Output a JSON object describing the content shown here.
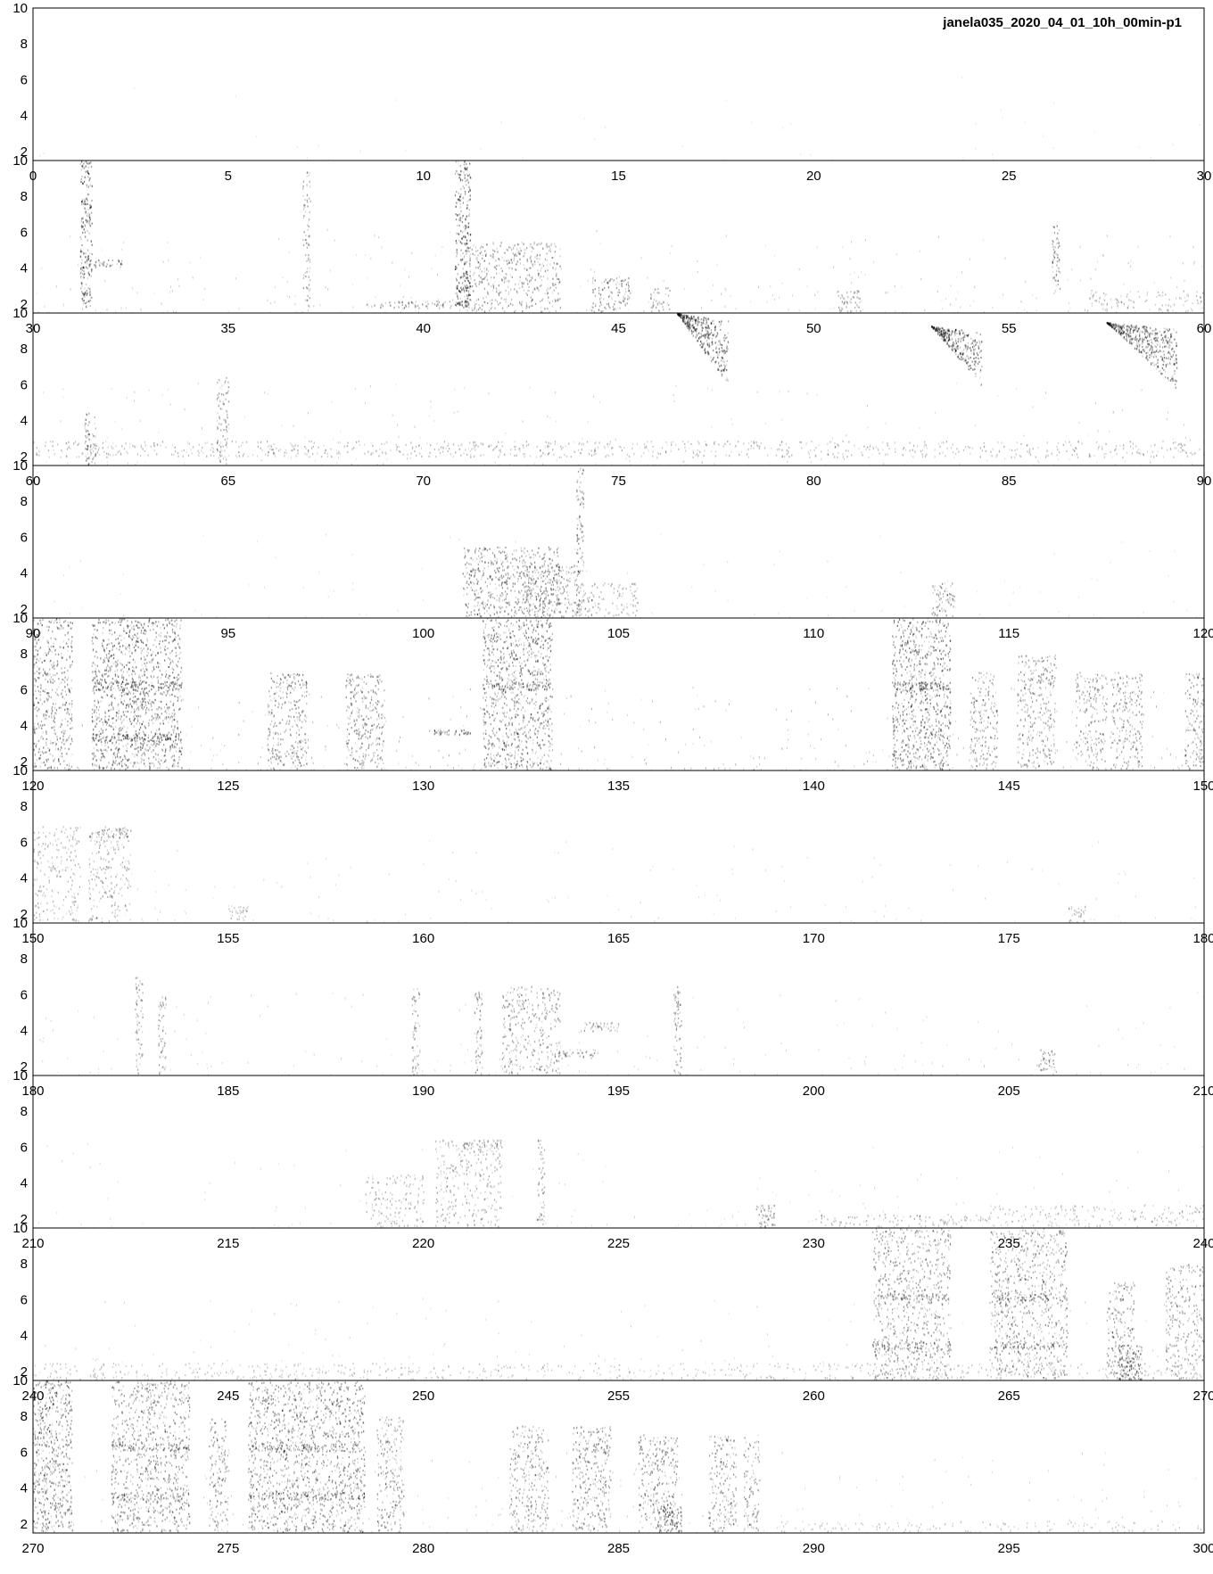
{
  "title": "janela035_2020_04_01_10h_00min-p1",
  "chart_data": {
    "type": "heatmap",
    "title": "janela035_2020_04_01_10h_00min-p1",
    "xlabel": "",
    "ylabel": "",
    "grid": false,
    "legend": "none",
    "ylim": [
      1.5,
      10
    ],
    "y_ticks": [
      2,
      4,
      6,
      8,
      10
    ],
    "x_tick_step": 5,
    "colors": {
      "ink": "#000000",
      "background": "#ffffff"
    },
    "rows": [
      {
        "xlim": [
          0,
          30
        ],
        "noise": 0.05,
        "events": []
      },
      {
        "xlim": [
          30,
          60
        ],
        "noise": 0.35,
        "events": [
          {
            "x0": 31.2,
            "x1": 31.5,
            "f0": 1.8,
            "f1": 10,
            "intensity": 0.9
          },
          {
            "x0": 31.3,
            "x1": 32.3,
            "f0": 4.1,
            "f1": 4.5,
            "intensity": 0.7
          },
          {
            "x0": 36.9,
            "x1": 37.1,
            "f0": 1.8,
            "f1": 9.5,
            "intensity": 0.5
          },
          {
            "x0": 40.8,
            "x1": 41.2,
            "f0": 1.8,
            "f1": 10,
            "intensity": 0.9
          },
          {
            "x0": 38.5,
            "x1": 41.0,
            "f0": 1.8,
            "f1": 2.2,
            "intensity": 0.6
          },
          {
            "x0": 41.0,
            "x1": 43.5,
            "f0": 1.6,
            "f1": 5.5,
            "intensity": 0.55
          },
          {
            "x0": 44.3,
            "x1": 45.3,
            "f0": 1.6,
            "f1": 3.5,
            "intensity": 0.6
          },
          {
            "x0": 45.8,
            "x1": 46.3,
            "f0": 1.6,
            "f1": 3.0,
            "intensity": 0.4
          },
          {
            "x0": 50.6,
            "x1": 51.2,
            "f0": 1.6,
            "f1": 2.8,
            "intensity": 0.5
          },
          {
            "x0": 56.1,
            "x1": 56.3,
            "f0": 2.5,
            "f1": 6.5,
            "intensity": 0.6
          },
          {
            "x0": 57.0,
            "x1": 60.0,
            "f0": 1.6,
            "f1": 2.8,
            "intensity": 0.3
          }
        ]
      },
      {
        "xlim": [
          60,
          90
        ],
        "noise": 0.3,
        "events": [
          {
            "x0": 60,
            "x1": 90,
            "f0": 2.0,
            "f1": 2.9,
            "intensity": 0.35
          },
          {
            "x0": 61.3,
            "x1": 61.6,
            "f0": 1.6,
            "f1": 4.5,
            "intensity": 0.6
          },
          {
            "x0": 64.7,
            "x1": 65.0,
            "f0": 1.6,
            "f1": 6.5,
            "intensity": 0.5
          },
          {
            "x0": 76.5,
            "x1": 77.8,
            "f0": 6.0,
            "f1": 10,
            "intensity": 0.85,
            "sweep": true
          },
          {
            "x0": 83.0,
            "x1": 84.3,
            "f0": 6.0,
            "f1": 9.3,
            "intensity": 0.85,
            "sweep": true
          },
          {
            "x0": 87.5,
            "x1": 89.3,
            "f0": 5.8,
            "f1": 9.5,
            "intensity": 0.8,
            "sweep": true
          }
        ]
      },
      {
        "xlim": [
          90,
          120
        ],
        "noise": 0.12,
        "events": [
          {
            "x0": 101.0,
            "x1": 103.5,
            "f0": 1.6,
            "f1": 5.5,
            "intensity": 0.65
          },
          {
            "x0": 102.5,
            "x1": 104.0,
            "f0": 1.6,
            "f1": 4.5,
            "intensity": 0.6
          },
          {
            "x0": 103.9,
            "x1": 104.1,
            "f0": 1.6,
            "f1": 10,
            "intensity": 0.6
          },
          {
            "x0": 104.0,
            "x1": 105.5,
            "f0": 1.6,
            "f1": 3.5,
            "intensity": 0.4
          },
          {
            "x0": 113.0,
            "x1": 113.6,
            "f0": 1.6,
            "f1": 3.5,
            "intensity": 0.55
          }
        ]
      },
      {
        "xlim": [
          120,
          150
        ],
        "noise": 0.55,
        "events": [
          {
            "x0": 120.0,
            "x1": 121.0,
            "f0": 1.6,
            "f1": 10,
            "intensity": 0.65
          },
          {
            "x0": 121.5,
            "x1": 123.8,
            "f0": 1.6,
            "f1": 10,
            "intensity": 0.75
          },
          {
            "x0": 121.5,
            "x1": 123.8,
            "f0": 3.2,
            "f1": 3.6,
            "intensity": 0.95
          },
          {
            "x0": 121.5,
            "x1": 123.8,
            "f0": 6.0,
            "f1": 6.5,
            "intensity": 0.85
          },
          {
            "x0": 126.0,
            "x1": 127.0,
            "f0": 1.6,
            "f1": 7.0,
            "intensity": 0.6
          },
          {
            "x0": 128.0,
            "x1": 129.0,
            "f0": 1.6,
            "f1": 7.0,
            "intensity": 0.6
          },
          {
            "x0": 130.2,
            "x1": 131.2,
            "f0": 3.5,
            "f1": 3.8,
            "intensity": 0.8
          },
          {
            "x0": 131.5,
            "x1": 133.3,
            "f0": 1.6,
            "f1": 10,
            "intensity": 0.7
          },
          {
            "x0": 131.5,
            "x1": 133.3,
            "f0": 6.0,
            "f1": 6.5,
            "intensity": 0.8
          },
          {
            "x0": 142.0,
            "x1": 143.5,
            "f0": 1.6,
            "f1": 10,
            "intensity": 0.75
          },
          {
            "x0": 142.0,
            "x1": 143.5,
            "f0": 6.0,
            "f1": 6.5,
            "intensity": 0.85
          },
          {
            "x0": 144.0,
            "x1": 144.7,
            "f0": 1.6,
            "f1": 7.0,
            "intensity": 0.55
          },
          {
            "x0": 145.2,
            "x1": 146.2,
            "f0": 1.6,
            "f1": 8.0,
            "intensity": 0.55
          },
          {
            "x0": 146.7,
            "x1": 147.5,
            "f0": 1.6,
            "f1": 7.0,
            "intensity": 0.5
          },
          {
            "x0": 147.6,
            "x1": 148.4,
            "f0": 1.6,
            "f1": 7.0,
            "intensity": 0.55
          },
          {
            "x0": 149.5,
            "x1": 150.0,
            "f0": 1.6,
            "f1": 7.0,
            "intensity": 0.55
          }
        ]
      },
      {
        "xlim": [
          150,
          180
        ],
        "noise": 0.18,
        "events": [
          {
            "x0": 150.0,
            "x1": 151.2,
            "f0": 1.6,
            "f1": 7.0,
            "intensity": 0.35
          },
          {
            "x0": 151.4,
            "x1": 152.5,
            "f0": 1.6,
            "f1": 7.0,
            "intensity": 0.4
          },
          {
            "x0": 151.4,
            "x1": 152.5,
            "f0": 6.3,
            "f1": 6.8,
            "intensity": 0.5
          },
          {
            "x0": 155.0,
            "x1": 155.5,
            "f0": 1.6,
            "f1": 2.5,
            "intensity": 0.3
          },
          {
            "x0": 176.5,
            "x1": 177.0,
            "f0": 1.6,
            "f1": 2.5,
            "intensity": 0.3
          }
        ]
      },
      {
        "xlim": [
          180,
          210
        ],
        "noise": 0.22,
        "events": [
          {
            "x0": 182.6,
            "x1": 182.8,
            "f0": 1.6,
            "f1": 7.0,
            "intensity": 0.5
          },
          {
            "x0": 183.2,
            "x1": 183.4,
            "f0": 1.6,
            "f1": 6.0,
            "intensity": 0.5
          },
          {
            "x0": 189.7,
            "x1": 189.9,
            "f0": 1.6,
            "f1": 6.5,
            "intensity": 0.5
          },
          {
            "x0": 191.3,
            "x1": 191.5,
            "f0": 1.6,
            "f1": 6.5,
            "intensity": 0.55
          },
          {
            "x0": 192.0,
            "x1": 193.5,
            "f0": 1.6,
            "f1": 6.5,
            "intensity": 0.5
          },
          {
            "x0": 193.3,
            "x1": 194.5,
            "f0": 2.5,
            "f1": 3.0,
            "intensity": 0.55
          },
          {
            "x0": 194.0,
            "x1": 195.0,
            "f0": 4.0,
            "f1": 4.5,
            "intensity": 0.5
          },
          {
            "x0": 196.4,
            "x1": 196.6,
            "f0": 1.6,
            "f1": 6.5,
            "intensity": 0.55
          },
          {
            "x0": 205.7,
            "x1": 206.2,
            "f0": 1.6,
            "f1": 3.0,
            "intensity": 0.45
          }
        ]
      },
      {
        "xlim": [
          210,
          240
        ],
        "noise": 0.18,
        "events": [
          {
            "x0": 218.5,
            "x1": 220.0,
            "f0": 1.6,
            "f1": 4.5,
            "intensity": 0.35
          },
          {
            "x0": 220.3,
            "x1": 222.0,
            "f0": 1.6,
            "f1": 6.5,
            "intensity": 0.4
          },
          {
            "x0": 221.0,
            "x1": 222.0,
            "f0": 6.0,
            "f1": 6.3,
            "intensity": 0.5
          },
          {
            "x0": 222.9,
            "x1": 223.1,
            "f0": 1.6,
            "f1": 6.5,
            "intensity": 0.45
          },
          {
            "x0": 228.5,
            "x1": 229.0,
            "f0": 1.6,
            "f1": 2.8,
            "intensity": 0.6
          },
          {
            "x0": 230.0,
            "x1": 234.5,
            "f0": 1.6,
            "f1": 2.3,
            "intensity": 0.35
          },
          {
            "x0": 234.5,
            "x1": 240.0,
            "f0": 1.6,
            "f1": 2.8,
            "intensity": 0.3
          }
        ]
      },
      {
        "xlim": [
          240,
          270
        ],
        "noise": 0.25,
        "events": [
          {
            "x0": 240.0,
            "x1": 270.0,
            "f0": 1.6,
            "f1": 2.5,
            "intensity": 0.25
          },
          {
            "x0": 261.5,
            "x1": 263.5,
            "f0": 1.6,
            "f1": 10,
            "intensity": 0.55
          },
          {
            "x0": 261.5,
            "x1": 263.5,
            "f0": 3.3,
            "f1": 3.7,
            "intensity": 0.7
          },
          {
            "x0": 261.5,
            "x1": 263.5,
            "f0": 6.0,
            "f1": 6.4,
            "intensity": 0.65
          },
          {
            "x0": 264.5,
            "x1": 266.5,
            "f0": 1.6,
            "f1": 10,
            "intensity": 0.55
          },
          {
            "x0": 264.5,
            "x1": 266.5,
            "f0": 3.3,
            "f1": 3.7,
            "intensity": 0.7
          },
          {
            "x0": 264.5,
            "x1": 266.5,
            "f0": 6.0,
            "f1": 6.4,
            "intensity": 0.65
          },
          {
            "x0": 267.5,
            "x1": 268.2,
            "f0": 1.6,
            "f1": 7.0,
            "intensity": 0.55
          },
          {
            "x0": 267.8,
            "x1": 268.4,
            "f0": 1.6,
            "f1": 3.5,
            "intensity": 0.9
          },
          {
            "x0": 269.0,
            "x1": 270.0,
            "f0": 1.6,
            "f1": 8.0,
            "intensity": 0.5
          }
        ]
      },
      {
        "xlim": [
          270,
          300
        ],
        "noise": 0.3,
        "events": [
          {
            "x0": 270.0,
            "x1": 271.0,
            "f0": 1.6,
            "f1": 10,
            "intensity": 0.75
          },
          {
            "x0": 272.0,
            "x1": 274.0,
            "f0": 1.6,
            "f1": 10,
            "intensity": 0.6
          },
          {
            "x0": 272.0,
            "x1": 274.0,
            "f0": 3.4,
            "f1": 3.8,
            "intensity": 0.75
          },
          {
            "x0": 272.0,
            "x1": 274.0,
            "f0": 6.1,
            "f1": 6.5,
            "intensity": 0.7
          },
          {
            "x0": 274.5,
            "x1": 275.0,
            "f0": 1.6,
            "f1": 8.0,
            "intensity": 0.55
          },
          {
            "x0": 275.5,
            "x1": 278.5,
            "f0": 1.6,
            "f1": 10,
            "intensity": 0.65
          },
          {
            "x0": 275.5,
            "x1": 278.5,
            "f0": 3.4,
            "f1": 3.8,
            "intensity": 0.8
          },
          {
            "x0": 275.5,
            "x1": 278.5,
            "f0": 6.1,
            "f1": 6.5,
            "intensity": 0.75
          },
          {
            "x0": 278.8,
            "x1": 279.5,
            "f0": 1.6,
            "f1": 8.0,
            "intensity": 0.55
          },
          {
            "x0": 282.2,
            "x1": 283.2,
            "f0": 1.6,
            "f1": 7.5,
            "intensity": 0.55
          },
          {
            "x0": 283.8,
            "x1": 284.8,
            "f0": 1.6,
            "f1": 7.5,
            "intensity": 0.6
          },
          {
            "x0": 285.5,
            "x1": 286.5,
            "f0": 1.6,
            "f1": 7.0,
            "intensity": 0.6
          },
          {
            "x0": 286.0,
            "x1": 286.6,
            "f0": 1.6,
            "f1": 3.0,
            "intensity": 0.85
          },
          {
            "x0": 287.3,
            "x1": 288.0,
            "f0": 1.6,
            "f1": 7.0,
            "intensity": 0.55
          },
          {
            "x0": 288.2,
            "x1": 288.6,
            "f0": 1.6,
            "f1": 7.0,
            "intensity": 0.5
          },
          {
            "x0": 289.0,
            "x1": 300.0,
            "f0": 1.6,
            "f1": 2.2,
            "intensity": 0.2
          }
        ]
      }
    ]
  }
}
